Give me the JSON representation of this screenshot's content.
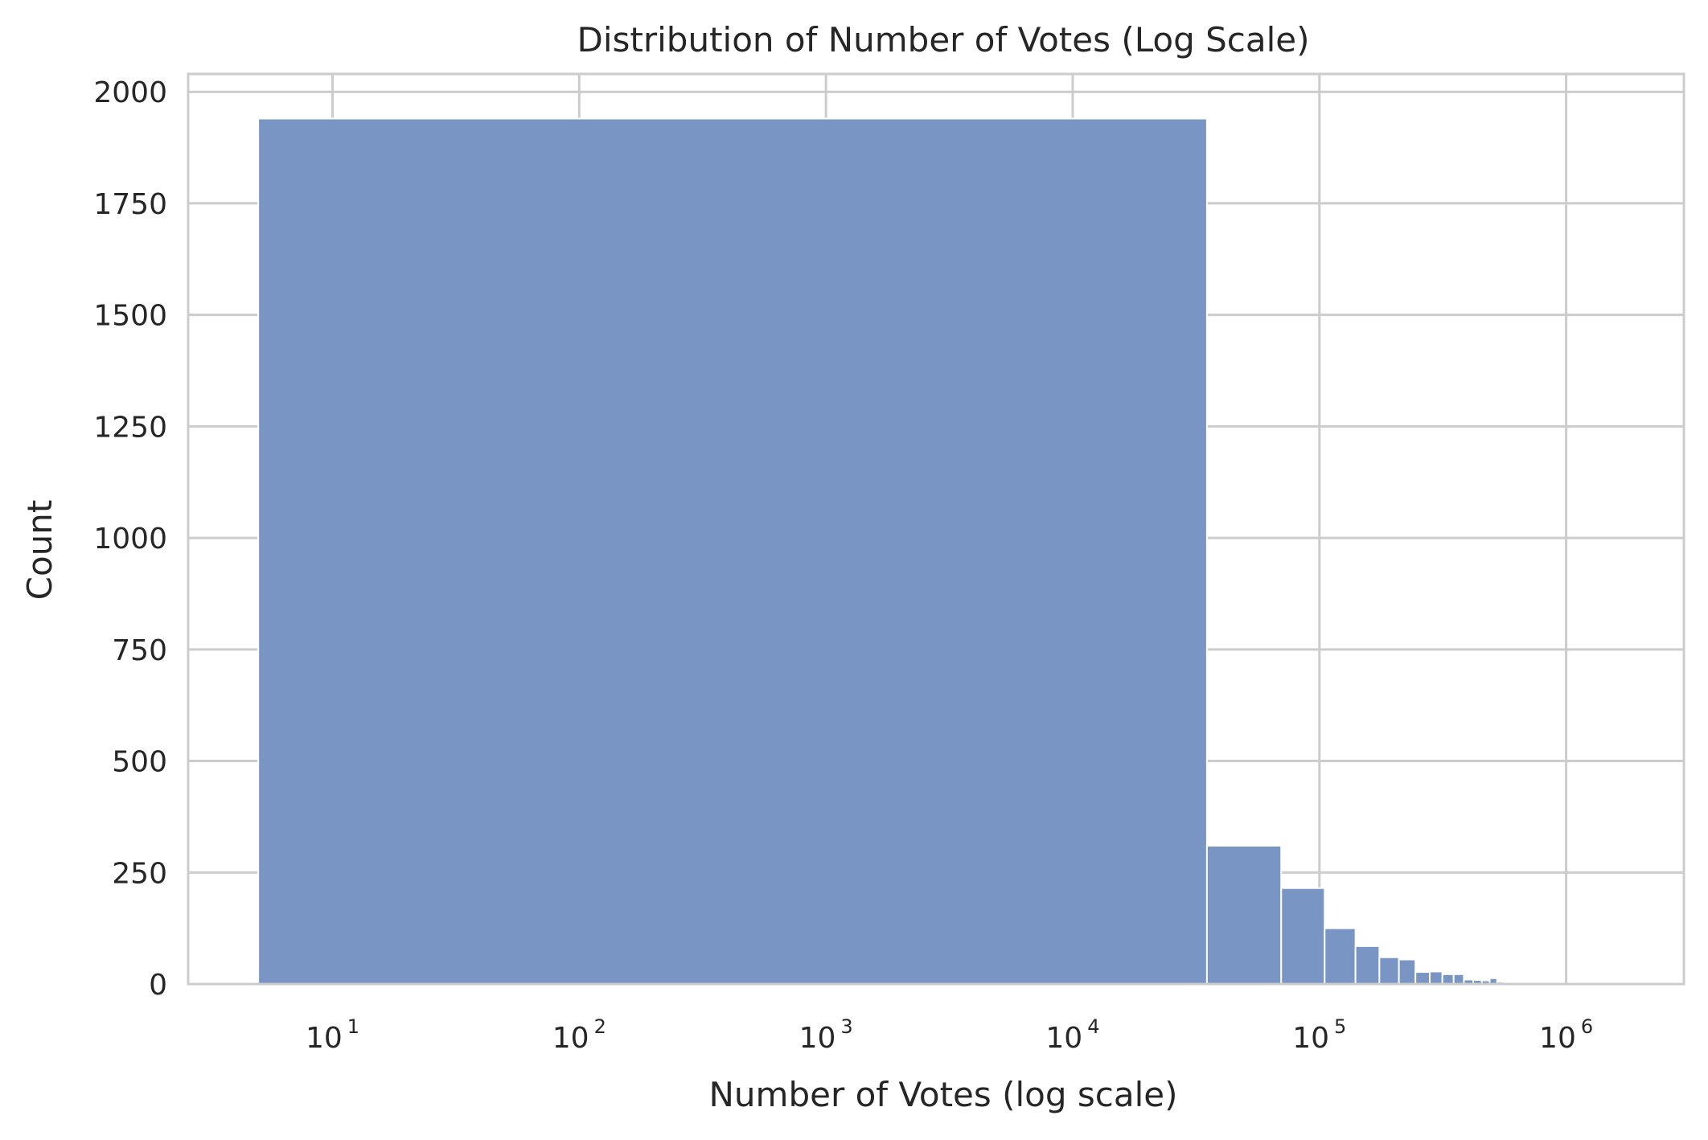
{
  "chart_data": {
    "type": "bar",
    "title": "Distribution of Number of Votes (Log Scale)",
    "xlabel": "Number of Votes (log scale)",
    "ylabel": "Count",
    "x_scale": "log",
    "xlim": [
      2.6,
      3000000
    ],
    "ylim": [
      0,
      2040
    ],
    "grid": true,
    "bar_color": "#7895c3",
    "bar_edge_color": "#ffffff",
    "grid_color": "#cccccc",
    "x_ticks": [
      {
        "base": "10",
        "exponent": "1",
        "value": 10
      },
      {
        "base": "10",
        "exponent": "2",
        "value": 100
      },
      {
        "base": "10",
        "exponent": "3",
        "value": 1000
      },
      {
        "base": "10",
        "exponent": "4",
        "value": 10000
      },
      {
        "base": "10",
        "exponent": "5",
        "value": 100000
      },
      {
        "base": "10",
        "exponent": "6",
        "value": 1000000
      }
    ],
    "y_ticks": [
      {
        "label": "0",
        "value": 0
      },
      {
        "label": "250",
        "value": 250
      },
      {
        "label": "500",
        "value": 500
      },
      {
        "label": "750",
        "value": 750
      },
      {
        "label": "1000",
        "value": 1000
      },
      {
        "label": "1250",
        "value": 1250
      },
      {
        "label": "1500",
        "value": 1500
      },
      {
        "label": "1750",
        "value": 1750
      },
      {
        "label": "2000",
        "value": 2000
      }
    ],
    "bins": [
      {
        "x0": 5,
        "x1": 35000,
        "count": 1940
      },
      {
        "x0": 35000,
        "x1": 70000,
        "count": 310
      },
      {
        "x0": 70000,
        "x1": 105000,
        "count": 215
      },
      {
        "x0": 105000,
        "x1": 140000,
        "count": 125
      },
      {
        "x0": 140000,
        "x1": 175000,
        "count": 85
      },
      {
        "x0": 175000,
        "x1": 210000,
        "count": 60
      },
      {
        "x0": 210000,
        "x1": 245000,
        "count": 55
      },
      {
        "x0": 245000,
        "x1": 280000,
        "count": 27
      },
      {
        "x0": 280000,
        "x1": 315000,
        "count": 28
      },
      {
        "x0": 315000,
        "x1": 350000,
        "count": 22
      },
      {
        "x0": 350000,
        "x1": 385000,
        "count": 22
      },
      {
        "x0": 385000,
        "x1": 420000,
        "count": 10
      },
      {
        "x0": 420000,
        "x1": 455000,
        "count": 9
      },
      {
        "x0": 455000,
        "x1": 490000,
        "count": 8
      },
      {
        "x0": 490000,
        "x1": 525000,
        "count": 13
      },
      {
        "x0": 525000,
        "x1": 560000,
        "count": 5
      },
      {
        "x0": 560000,
        "x1": 595000,
        "count": 3
      },
      {
        "x0": 595000,
        "x1": 630000,
        "count": 2
      },
      {
        "x0": 630000,
        "x1": 665000,
        "count": 2
      },
      {
        "x0": 665000,
        "x1": 700000,
        "count": 1
      },
      {
        "x0": 700000,
        "x1": 735000,
        "count": 1
      },
      {
        "x0": 735000,
        "x1": 770000,
        "count": 1
      },
      {
        "x0": 770000,
        "x1": 805000,
        "count": 1
      },
      {
        "x0": 805000,
        "x1": 840000,
        "count": 1
      },
      {
        "x0": 840000,
        "x1": 875000,
        "count": 1
      },
      {
        "x0": 875000,
        "x1": 910000,
        "count": 1
      },
      {
        "x0": 910000,
        "x1": 945000,
        "count": 1
      },
      {
        "x0": 945000,
        "x1": 980000,
        "count": 1
      },
      {
        "x0": 980000,
        "x1": 1015000,
        "count": 1
      },
      {
        "x0": 1015000,
        "x1": 2000000,
        "count": 1
      }
    ]
  }
}
